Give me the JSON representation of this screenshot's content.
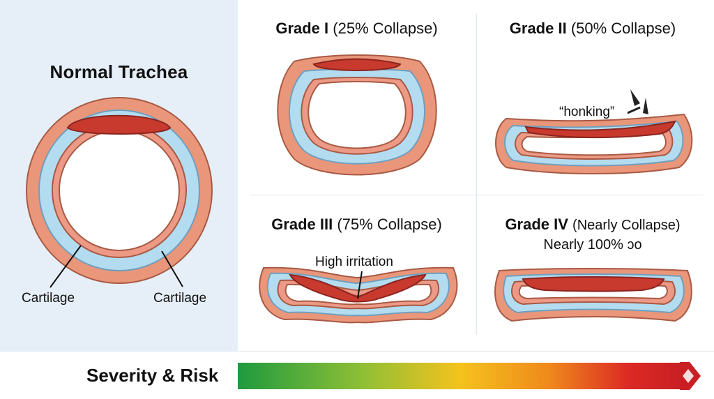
{
  "normal": {
    "title": "Normal Trachea",
    "label_left": "Cartilage",
    "label_right": "Cartilage"
  },
  "grades": [
    {
      "name": "Grade I",
      "pct": "(25% Collapse)"
    },
    {
      "name": "Grade II",
      "pct": "(50% Collapse)",
      "annotation": "“honking”"
    },
    {
      "name": "Grade III",
      "pct": "(75% Collapse)",
      "annotation": "High irritation"
    },
    {
      "name": "Grade IV",
      "pct": "(Nearly Collapse)",
      "subtitle": "Nearly 100% ɔo"
    }
  ],
  "severity": {
    "label": "Severity & Risk"
  },
  "colors": {
    "outer_tissue": "#e9967a",
    "cartilage": "#b3dcf0",
    "inner_lining": "#f0908a",
    "membrane": "#c8392e",
    "panel_bg": "#e6eff8"
  }
}
